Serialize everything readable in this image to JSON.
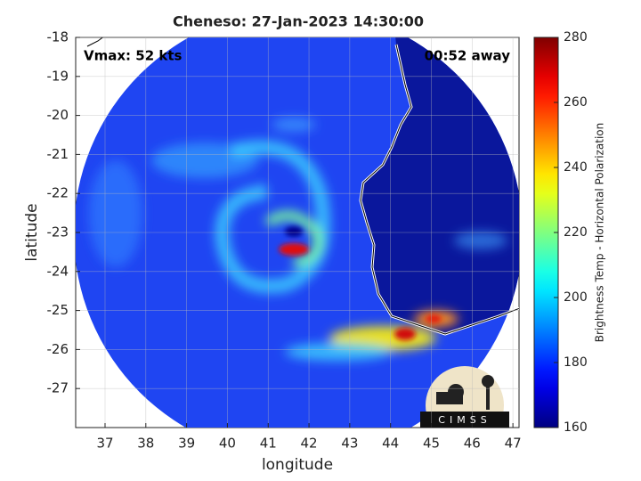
{
  "chart_data": {
    "type": "heatmap",
    "title": "Cheneso: 27-Jan-2023 14:30:00",
    "xlabel": "longitude",
    "ylabel": "latitude",
    "xlim": [
      36.28,
      47.15
    ],
    "ylim": [
      -28,
      -18
    ],
    "xticks": [
      37,
      38,
      39,
      40,
      41,
      42,
      43,
      44,
      45,
      46,
      47
    ],
    "yticks": [
      -27,
      -26,
      -25,
      -24,
      -23,
      -22,
      -21,
      -20,
      -19,
      -18
    ],
    "grid": true,
    "annotations": [
      "Vmax: 52 kts",
      "00:52 away"
    ],
    "colorbar": {
      "label": "Brightness Temp - Horizontal Polarization",
      "lim": [
        160,
        280
      ],
      "ticks": [
        160,
        180,
        200,
        220,
        240,
        260,
        280
      ],
      "colormap": "jet"
    },
    "logo": "CIMSS"
  }
}
